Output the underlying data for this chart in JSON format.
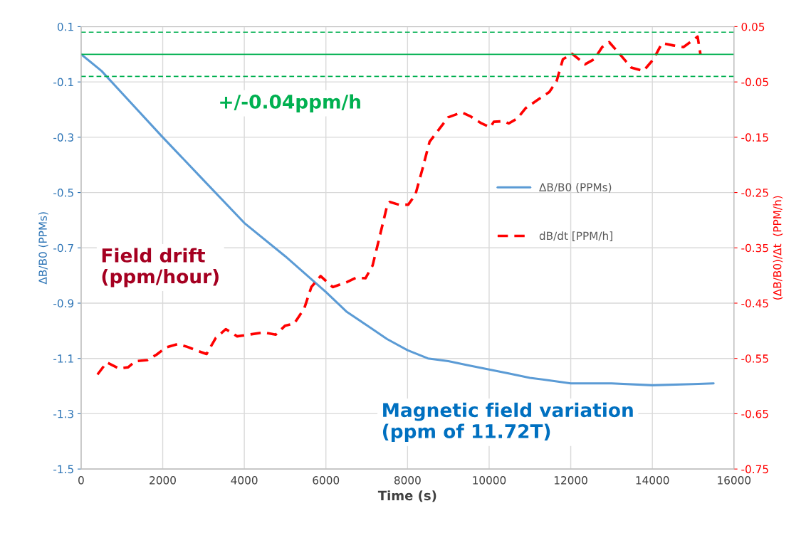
{
  "chart_data": {
    "type": "line",
    "xlabel": "Time (s)",
    "ylabel": "ΔB/B0 (PPMs)",
    "y2label": "(ΔB/B0)/Δt  (PPM/h)",
    "xlim": [
      0,
      16000
    ],
    "xticks": [
      0,
      2000,
      4000,
      6000,
      8000,
      10000,
      12000,
      14000,
      16000
    ],
    "ylim": [
      -1.5,
      0.1
    ],
    "yticks": [
      0.1,
      -0.1,
      -0.3,
      -0.5,
      -0.7,
      -0.9,
      -1.1,
      -1.3,
      -1.5
    ],
    "y2lim": [
      -0.75,
      0.05
    ],
    "y2ticks": [
      0.05,
      -0.05,
      -0.15,
      -0.25,
      -0.35,
      -0.45,
      -0.55,
      -0.65,
      -0.75
    ],
    "grid": true,
    "legend": "right",
    "marker": "none",
    "series": [
      {
        "name": "ΔB/B0 (PPMs)",
        "color": "#5b9bd5",
        "line_style": "solid",
        "x": [
          0,
          500,
          1000,
          2000,
          3000,
          4000,
          5000,
          6000,
          6500,
          7000,
          7500,
          8000,
          8500,
          9000,
          9500,
          10000,
          10500,
          11000,
          11500,
          12000,
          13000,
          14000,
          15000,
          15500
        ],
        "values": [
          0,
          -0.06,
          -0.14,
          -0.3,
          -0.455,
          -0.61,
          -0.73,
          -0.86,
          -0.93,
          -0.98,
          -1.03,
          -1.07,
          -1.1,
          -1.11,
          -1.125,
          -1.14,
          -1.155,
          -1.17,
          -1.18,
          -1.19,
          -1.19,
          -1.197,
          -1.193,
          -1.19
        ]
      },
      {
        "name": "dB/dt [PPM/h]",
        "color": "#ff0000",
        "line_style": "dashed",
        "axis": "y2",
        "x": [
          402,
          629,
          926,
          1153,
          1328,
          1624,
          1852,
          2079,
          2376,
          2603,
          2847,
          3074,
          3301,
          3546,
          3825,
          4472,
          4769,
          4996,
          5223,
          5467,
          5642,
          5869,
          6166,
          6515,
          6742,
          6969,
          7144,
          7319,
          7493,
          7563,
          7790,
          8017,
          8192,
          8367,
          8541,
          8996,
          9328,
          9537,
          9817,
          10026,
          10114,
          10358,
          10480,
          10690,
          10900,
          11197,
          11476,
          11651,
          11808,
          12035,
          12349,
          12576,
          12769,
          12943,
          13240,
          13485,
          13782,
          14026,
          14236,
          14515,
          14760,
          14987,
          15109,
          15179
        ],
        "values": [
          -0.579,
          -0.557,
          -0.568,
          -0.566,
          -0.555,
          -0.553,
          -0.543,
          -0.53,
          -0.524,
          -0.529,
          -0.536,
          -0.542,
          -0.513,
          -0.497,
          -0.51,
          -0.503,
          -0.507,
          -0.491,
          -0.487,
          -0.46,
          -0.421,
          -0.401,
          -0.421,
          -0.412,
          -0.404,
          -0.405,
          -0.382,
          -0.329,
          -0.276,
          -0.267,
          -0.272,
          -0.272,
          -0.254,
          -0.207,
          -0.158,
          -0.114,
          -0.105,
          -0.112,
          -0.125,
          -0.132,
          -0.122,
          -0.121,
          -0.125,
          -0.116,
          -0.097,
          -0.082,
          -0.068,
          -0.049,
          -0.009,
          0.001,
          -0.018,
          -0.009,
          0.013,
          0.022,
          -0.003,
          -0.024,
          -0.03,
          -0.009,
          0.02,
          0.016,
          0.013,
          0.025,
          0.032,
          0.0
        ]
      }
    ],
    "ref_lines": [
      {
        "axis": "y2",
        "value": 0.04,
        "color": "#00b050",
        "line_style": "dashed"
      },
      {
        "axis": "y2",
        "value": 0,
        "color": "#00b050",
        "line_style": "solid"
      },
      {
        "axis": "y2",
        "value": -0.04,
        "color": "#00b050",
        "line_style": "dashed"
      }
    ],
    "annotations": [
      "+/-0.04ppm/h",
      "Field drift\n(ppm/hour)",
      "Magnetic field variation\n(ppm of 11.72T)"
    ]
  }
}
